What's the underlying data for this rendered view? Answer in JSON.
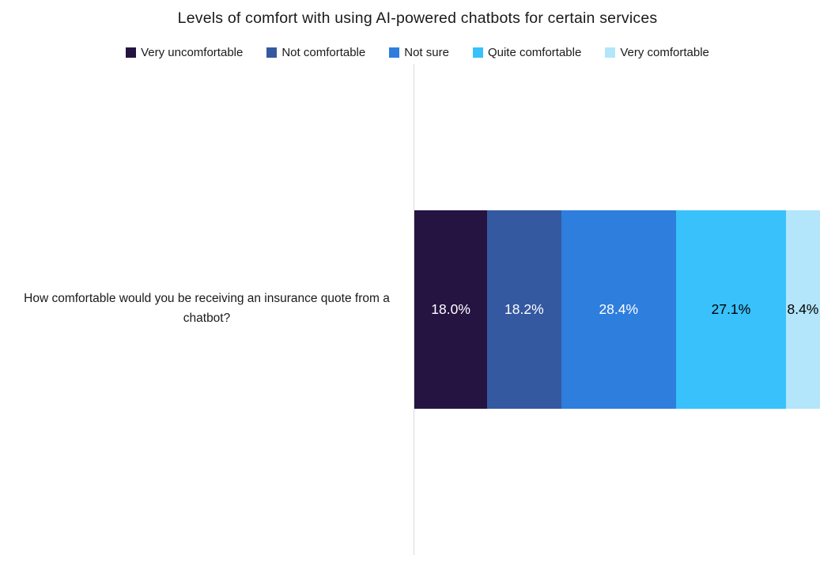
{
  "title": "Levels of comfort with using AI-powered chatbots for certain services",
  "category_label": "How comfortable would you be receiving an insurance quote from a chatbot?",
  "chart_data": {
    "type": "bar",
    "subtype": "stacked-horizontal",
    "title": "Levels of comfort with using AI-powered chatbots for certain services",
    "categories": [
      "How comfortable would you be receiving an insurance quote from a chatbot?"
    ],
    "series": [
      {
        "name": "Very uncomfortable",
        "values": [
          18.0
        ],
        "labels": [
          "18.0%"
        ],
        "color": "#251442",
        "label_color": "#ffffff"
      },
      {
        "name": "Not comfortable",
        "values": [
          18.2
        ],
        "labels": [
          "18.2%"
        ],
        "color": "#3559a0",
        "label_color": "#ffffff"
      },
      {
        "name": "Not sure",
        "values": [
          28.4
        ],
        "labels": [
          "28.4%"
        ],
        "color": "#2e7edd",
        "label_color": "#ffffff"
      },
      {
        "name": "Quite comfortable",
        "values": [
          27.1
        ],
        "labels": [
          "27.1%"
        ],
        "color": "#38c1fa",
        "label_color": "#000000"
      },
      {
        "name": "Very comfortable",
        "values": [
          8.4
        ],
        "labels": [
          "8.4%"
        ],
        "color": "#b3e5fb",
        "label_color": "#000000"
      }
    ],
    "xlim": [
      0,
      100
    ],
    "legend_position": "top",
    "grid": false,
    "axis_line_color": "#d9d9d9"
  }
}
